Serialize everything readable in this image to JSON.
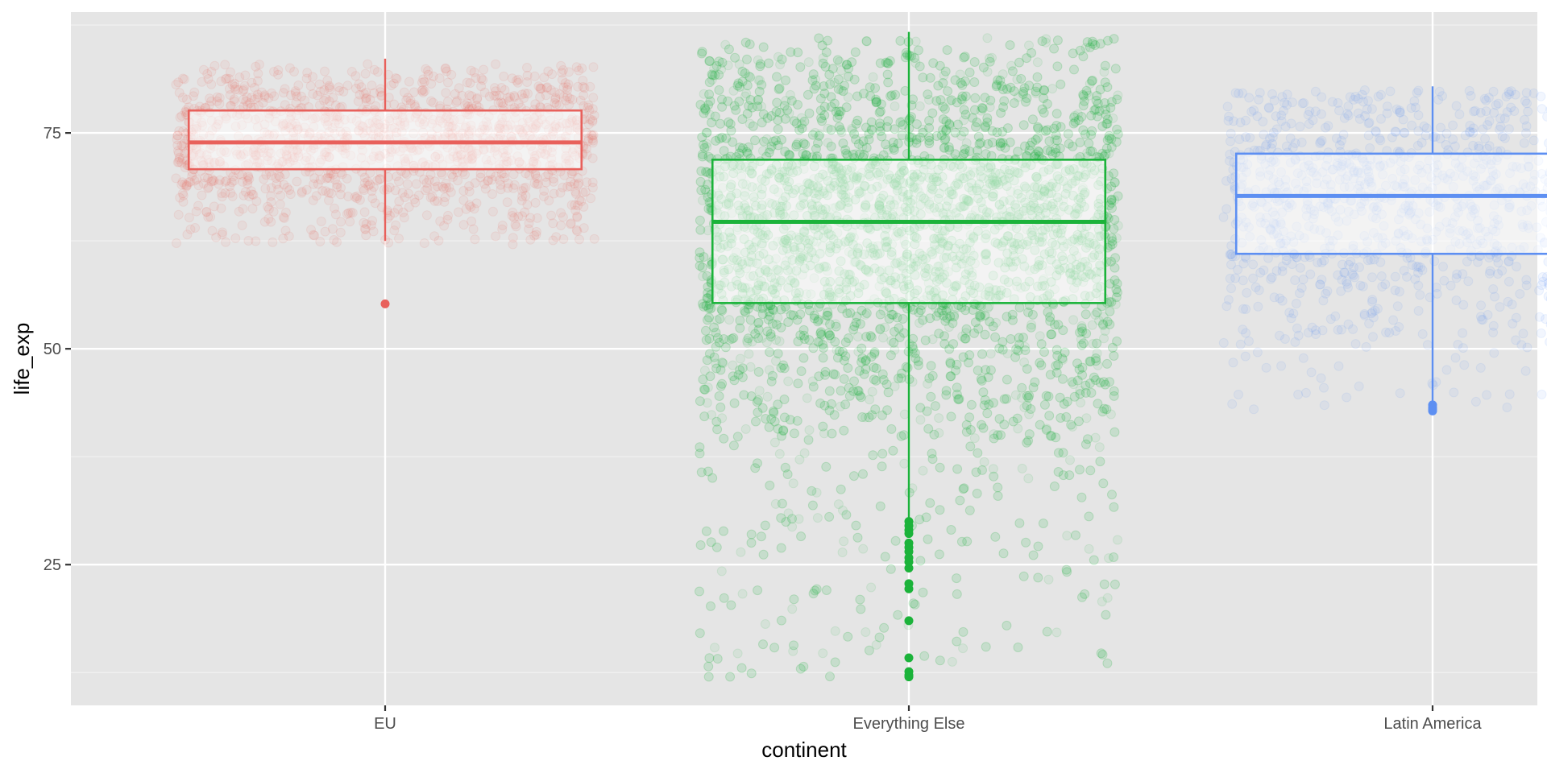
{
  "chart_data": {
    "type": "boxplot",
    "xlabel": "continent",
    "ylabel": "life_exp",
    "ylim": [
      8.7,
      89
    ],
    "yticks": [
      25,
      50,
      75
    ],
    "yminor": [
      12.5,
      37.5,
      62.5,
      87.5
    ],
    "grid": true,
    "background": "#e5e5e5",
    "jitter_points": true,
    "categories": [
      "EU",
      "Everything Else",
      "Latin America"
    ],
    "series": [
      {
        "category": "EU",
        "color": "#e8605b",
        "whisker_low": 62.5,
        "q1": 70.8,
        "median": 73.9,
        "q3": 77.6,
        "whisker_high": 83.6,
        "outliers": [
          55.2
        ],
        "jitter_range": [
          62,
          83
        ],
        "jitter_count": 1400,
        "jitter_width": 0.4
      },
      {
        "category": "Everything Else",
        "color": "#1bb33a",
        "whisker_low": 30.4,
        "q1": 55.3,
        "median": 64.7,
        "q3": 71.9,
        "whisker_high": 86.7,
        "outliers": [
          30.0,
          29.5,
          29.0,
          28.6,
          27.5,
          27.0,
          26.5,
          25.8,
          25.3,
          24.6,
          22.8,
          22.2,
          18.5,
          14.2,
          12.6,
          12.2,
          12.0
        ],
        "jitter_range": [
          12,
          86
        ],
        "jitter_count": 5000,
        "jitter_width": 0.4
      },
      {
        "category": "Latin America",
        "color": "#5d8ff2",
        "whisker_low": 43.7,
        "q1": 61.0,
        "median": 67.7,
        "q3": 72.6,
        "whisker_high": 80.4,
        "outliers": [
          43.5,
          43.2,
          43.0,
          42.8
        ],
        "jitter_range": [
          43,
          80
        ],
        "jitter_count": 1200,
        "jitter_width": 0.4
      }
    ]
  }
}
